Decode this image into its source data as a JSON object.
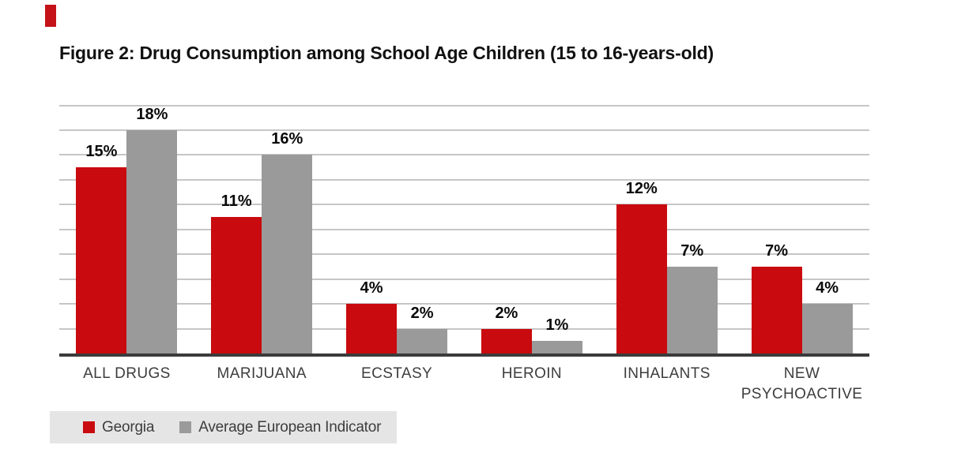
{
  "page": {
    "corner_mark_color": "#c41219"
  },
  "chart_data": {
    "type": "bar",
    "title": "Figure 2: Drug Consumption among School Age Children (15 to 16-years-old)",
    "categories": [
      "ALL DRUGS",
      "MARIJUANA",
      "ECSTASY",
      "HEROIN",
      "INHALANTS",
      "NEW PSYCHOACTIVE"
    ],
    "series": [
      {
        "name": "Georgia",
        "color": "#c90a0e",
        "values": [
          15,
          11,
          4,
          2,
          12,
          7
        ]
      },
      {
        "name": "Average European Indicator",
        "color": "#9a9a9a",
        "values": [
          18,
          16,
          2,
          1,
          7,
          4
        ]
      }
    ],
    "value_suffix": "%",
    "data_labels": {
      "Georgia": [
        "15%",
        "11%",
        "4%",
        "2%",
        "12%",
        "7%"
      ],
      "Average European Indicator": [
        "18%",
        "16%",
        "2%",
        "1%",
        "7%",
        "4%"
      ]
    },
    "xlabel": "",
    "ylabel": "",
    "ylim": [
      0,
      20
    ],
    "grid_step": 2,
    "grid": true,
    "y_axis_labels_visible": false,
    "legend_position": "bottom-left"
  }
}
